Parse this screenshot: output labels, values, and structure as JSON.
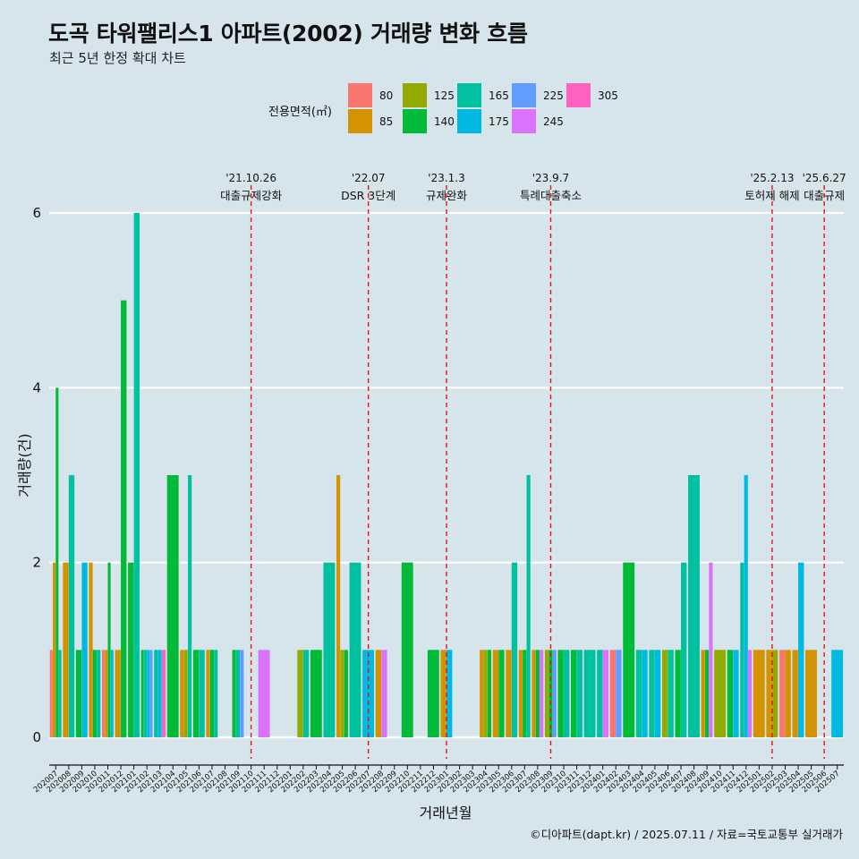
{
  "title": "도곡 타워팰리스1 아파트(2002) 거래량 변화 흐름",
  "subtitle": "최근 5년 한정 확대 차트",
  "caption": "©디아파트(dapt.kr) / 2025.07.11 / 자료=국토교통부 실거래가",
  "legend": {
    "title": "전용면적(㎡)",
    "items": [
      {
        "label": "80",
        "color": "#F8766D"
      },
      {
        "label": "85",
        "color": "#D39200"
      },
      {
        "label": "125",
        "color": "#93AA00"
      },
      {
        "label": "140",
        "color": "#00BA38"
      },
      {
        "label": "165",
        "color": "#00C19F"
      },
      {
        "label": "175",
        "color": "#00B9E3"
      },
      {
        "label": "225",
        "color": "#619CFF"
      },
      {
        "label": "245",
        "color": "#DB72FB"
      },
      {
        "label": "305",
        "color": "#FF61C3"
      }
    ]
  },
  "chart_data": {
    "type": "bar",
    "xlabel": "거래년월",
    "ylabel": "거래량(건)",
    "ylim": [
      0,
      6
    ],
    "yticks": [
      0,
      2,
      4,
      6
    ],
    "grid": true,
    "categories": [
      "202007",
      "202008",
      "202009",
      "202010",
      "202011",
      "202012",
      "202101",
      "202102",
      "202103",
      "202104",
      "202105",
      "202106",
      "202107",
      "202108",
      "202109",
      "202110",
      "202111",
      "202112",
      "202201",
      "202202",
      "202203",
      "202204",
      "202205",
      "202206",
      "202207",
      "202208",
      "202209",
      "202210",
      "202211",
      "202212",
      "202301",
      "202302",
      "202303",
      "202304",
      "202305",
      "202306",
      "202307",
      "202308",
      "202309",
      "202310",
      "202311",
      "202312",
      "202401",
      "202402",
      "202403",
      "202404",
      "202405",
      "202406",
      "202407",
      "202408",
      "202409",
      "202410",
      "202411",
      "202412",
      "202501",
      "202502",
      "202503",
      "202504",
      "202505",
      "202506",
      "202507"
    ],
    "series": [
      {
        "name": "80",
        "values": [
          1,
          0,
          0,
          0,
          1,
          0,
          0,
          0,
          0,
          0,
          0,
          0,
          0,
          0,
          0,
          0,
          0,
          0,
          0,
          0,
          0,
          0,
          0,
          0,
          0,
          0,
          0,
          0,
          0,
          0,
          0,
          0,
          0,
          0,
          0,
          0,
          0,
          0,
          0,
          0,
          0,
          0,
          0,
          1,
          0,
          0,
          0,
          0,
          0,
          0,
          0,
          0,
          0,
          0,
          0,
          0,
          1,
          0,
          0,
          0,
          0
        ]
      },
      {
        "name": "85",
        "values": [
          2,
          2,
          0,
          2,
          1,
          1,
          0,
          0,
          0,
          0,
          1,
          0,
          1,
          0,
          0,
          0,
          0,
          0,
          0,
          0,
          0,
          0,
          3,
          0,
          0,
          1,
          0,
          0,
          0,
          0,
          1,
          0,
          0,
          1,
          1,
          1,
          1,
          1,
          0,
          0,
          0,
          0,
          0,
          0,
          0,
          0,
          0,
          0,
          0,
          0,
          1,
          0,
          0,
          0,
          1,
          1,
          1,
          1,
          1,
          0,
          0
        ]
      },
      {
        "name": "125",
        "values": [
          0,
          0,
          0,
          0,
          0,
          0,
          0,
          0,
          0,
          0,
          1,
          0,
          0,
          0,
          0,
          0,
          0,
          0,
          0,
          1,
          0,
          0,
          1,
          0,
          0,
          0,
          0,
          0,
          0,
          0,
          0,
          0,
          0,
          1,
          0,
          0,
          0,
          0,
          1,
          0,
          0,
          0,
          0,
          0,
          0,
          0,
          0,
          1,
          0,
          0,
          0,
          1,
          0,
          0,
          0,
          1,
          0,
          0,
          0,
          0,
          0
        ]
      },
      {
        "name": "140",
        "values": [
          4,
          0,
          1,
          1,
          2,
          5,
          2,
          1,
          0,
          3,
          0,
          1,
          1,
          0,
          1,
          0,
          0,
          0,
          0,
          0,
          1,
          0,
          1,
          0,
          0,
          0,
          0,
          2,
          0,
          1,
          0,
          0,
          0,
          1,
          1,
          0,
          1,
          1,
          1,
          1,
          1,
          0,
          0,
          0,
          2,
          0,
          0,
          0,
          1,
          0,
          1,
          0,
          1,
          0,
          0,
          0,
          0,
          0,
          0,
          0,
          0
        ]
      },
      {
        "name": "165",
        "values": [
          1,
          3,
          0,
          1,
          0,
          0,
          6,
          1,
          1,
          0,
          3,
          1,
          1,
          0,
          1,
          0,
          0,
          0,
          0,
          1,
          0,
          2,
          0,
          2,
          0,
          0,
          0,
          0,
          0,
          0,
          0,
          0,
          0,
          0,
          0,
          2,
          3,
          0,
          0,
          1,
          1,
          1,
          1,
          0,
          0,
          1,
          1,
          1,
          2,
          3,
          0,
          0,
          0,
          2,
          0,
          0,
          0,
          0,
          0,
          0,
          0
        ]
      },
      {
        "name": "175",
        "values": [
          0,
          0,
          2,
          0,
          1,
          0,
          0,
          1,
          1,
          0,
          0,
          0,
          0,
          0,
          0,
          0,
          0,
          0,
          0,
          0,
          0,
          0,
          0,
          0,
          1,
          0,
          0,
          0,
          0,
          0,
          1,
          0,
          0,
          0,
          0,
          0,
          0,
          0,
          0,
          0,
          0,
          0,
          0,
          0,
          0,
          1,
          1,
          0,
          0,
          0,
          0,
          0,
          1,
          3,
          0,
          0,
          0,
          2,
          0,
          0,
          1
        ]
      },
      {
        "name": "225",
        "values": [
          0,
          0,
          0,
          0,
          0,
          0,
          0,
          1,
          0,
          0,
          0,
          0,
          0,
          0,
          1,
          0,
          0,
          0,
          0,
          0,
          0,
          0,
          0,
          0,
          0,
          0,
          0,
          0,
          0,
          0,
          0,
          0,
          0,
          0,
          0,
          0,
          0,
          0,
          1,
          0,
          0,
          0,
          0,
          1,
          0,
          0,
          0,
          0,
          0,
          0,
          0,
          0,
          0,
          0,
          0,
          0,
          0,
          0,
          0,
          0,
          0
        ]
      },
      {
        "name": "245",
        "values": [
          0,
          0,
          0,
          0,
          0,
          0,
          0,
          0,
          0,
          0,
          0,
          0,
          0,
          0,
          0,
          0,
          1,
          0,
          0,
          0,
          0,
          0,
          0,
          0,
          0,
          1,
          0,
          0,
          0,
          0,
          0,
          0,
          0,
          0,
          0,
          0,
          0,
          1,
          0,
          0,
          0,
          0,
          1,
          0,
          0,
          0,
          0,
          0,
          0,
          0,
          2,
          0,
          0,
          1,
          0,
          0,
          0,
          0,
          0,
          0,
          0
        ]
      },
      {
        "name": "305",
        "values": [
          0,
          0,
          0,
          0,
          0,
          0,
          0,
          0,
          1,
          0,
          0,
          0,
          0,
          0,
          0,
          0,
          0,
          0,
          0,
          0,
          0,
          0,
          0,
          0,
          0,
          0,
          0,
          0,
          0,
          0,
          0,
          0,
          0,
          0,
          0,
          0,
          0,
          0,
          0,
          0,
          0,
          0,
          0,
          0,
          0,
          0,
          0,
          0,
          0,
          0,
          0,
          0,
          0,
          0,
          0,
          0,
          0,
          0,
          0,
          0,
          0
        ]
      }
    ],
    "annotations": [
      {
        "x": "202110",
        "date": "'21.10.26",
        "label": "대출규제강화"
      },
      {
        "x": "202207",
        "date": "'22.07",
        "label": "DSR 3단계"
      },
      {
        "x": "202301",
        "date": "'23.1.3",
        "label": "규제완화"
      },
      {
        "x": "202309",
        "date": "'23.9.7",
        "label": "특례대출축소"
      },
      {
        "x": "202502",
        "date": "'25.2.13",
        "label": "토허제 해제"
      },
      {
        "x": "202506",
        "date": "'25.6.27",
        "label": "대출규제"
      }
    ]
  }
}
